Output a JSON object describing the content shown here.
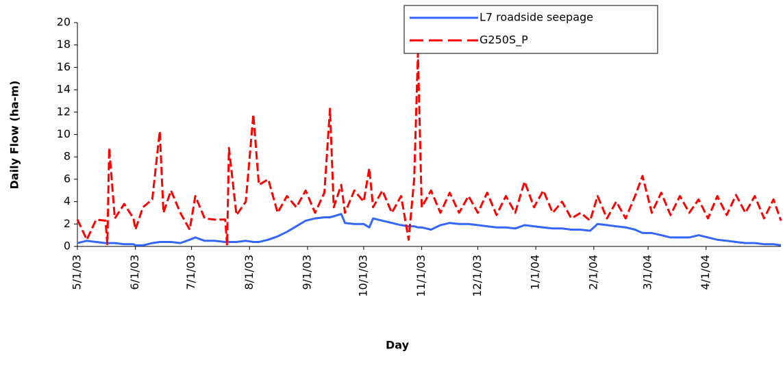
{
  "chart_data": {
    "type": "line",
    "xlabel": "Day",
    "ylabel": "Daily Flow (ha-m)",
    "x": [
      "5/1/03",
      "5/6/03",
      "5/11/03",
      "5/16/03",
      "5/17/03",
      "5/18/03",
      "5/21/03",
      "5/26/03",
      "5/31/03",
      "6/1/03",
      "6/5/03",
      "6/10/03",
      "6/14/03",
      "6/16/03",
      "6/20/03",
      "6/25/03",
      "6/30/03",
      "7/3/03",
      "7/8/03",
      "7/13/03",
      "7/19/03",
      "7/20/03",
      "7/21/03",
      "7/25/03",
      "7/30/03",
      "8/3/03",
      "8/6/03",
      "8/11/03",
      "8/16/03",
      "8/21/03",
      "8/26/03",
      "8/31/03",
      "9/5/03",
      "9/10/03",
      "9/13/03",
      "9/15/03",
      "9/19/03",
      "9/21/03",
      "9/26/03",
      "10/1/03",
      "10/4/03",
      "10/6/03",
      "10/11/03",
      "10/16/03",
      "10/21/03",
      "10/25/03",
      "10/28/03",
      "10/30/03",
      "11/1/03",
      "11/6/03",
      "11/11/03",
      "11/16/03",
      "11/21/03",
      "11/26/03",
      "12/1/03",
      "12/6/03",
      "12/11/03",
      "12/16/03",
      "12/21/03",
      "12/26/03",
      "12/31/03",
      "1/5/04",
      "1/10/04",
      "1/15/04",
      "1/20/04",
      "1/25/04",
      "1/30/04",
      "2/3/04",
      "2/8/04",
      "2/13/04",
      "2/18/04",
      "2/23/04",
      "2/27/04",
      "3/3/04",
      "3/8/04",
      "3/13/04",
      "3/18/04",
      "3/23/04",
      "3/28/04",
      "4/2/04",
      "4/7/04",
      "4/12/04",
      "4/17/04",
      "4/22/04",
      "4/27/04",
      "5/2/04",
      "5/7/04",
      "5/11/04"
    ],
    "series": [
      {
        "name": "L7 roadside seepage",
        "color": "#3366ff",
        "dash": false,
        "values": [
          0.3,
          0.5,
          0.4,
          0.3,
          0.3,
          0.3,
          0.3,
          0.2,
          0.2,
          0.1,
          0.1,
          0.3,
          0.4,
          0.4,
          0.4,
          0.3,
          0.6,
          0.8,
          0.5,
          0.5,
          0.4,
          0.4,
          0.4,
          0.4,
          0.5,
          0.4,
          0.4,
          0.6,
          0.9,
          1.3,
          1.8,
          2.3,
          2.5,
          2.6,
          2.6,
          2.7,
          2.9,
          2.1,
          2.0,
          2.0,
          1.7,
          2.5,
          2.3,
          2.1,
          1.9,
          1.8,
          1.8,
          1.7,
          1.7,
          1.5,
          1.9,
          2.1,
          2.0,
          2.0,
          1.9,
          1.8,
          1.7,
          1.7,
          1.6,
          1.9,
          1.8,
          1.7,
          1.6,
          1.6,
          1.5,
          1.5,
          1.4,
          2.0,
          1.9,
          1.8,
          1.7,
          1.5,
          1.2,
          1.2,
          1.0,
          0.8,
          0.8,
          0.8,
          1.0,
          0.8,
          0.6,
          0.5,
          0.4,
          0.3,
          0.3,
          0.2,
          0.2,
          0.1
        ]
      },
      {
        "name": "G250S_P",
        "color": "#ff0000",
        "dash": true,
        "values": [
          2.4,
          0.6,
          2.4,
          2.3,
          0.2,
          8.8,
          2.5,
          3.8,
          2.5,
          1.5,
          3.5,
          4.2,
          10.3,
          3,
          5,
          3,
          1.5,
          4.5,
          2.5,
          2.4,
          2.4,
          0.1,
          8.8,
          2.8,
          4,
          11.8,
          5.5,
          6,
          3,
          4.5,
          3.5,
          5,
          3,
          4.8,
          12.3,
          3.5,
          5.5,
          3,
          5,
          4,
          7,
          3.5,
          5,
          3,
          4.5,
          0.6,
          6,
          17.3,
          3.5,
          5,
          3,
          4.8,
          3,
          4.5,
          3,
          4.8,
          2.8,
          4.5,
          3,
          5.8,
          3.5,
          5,
          3,
          4,
          2.5,
          3,
          2.3,
          4.5,
          2.5,
          4,
          2.5,
          4.5,
          6.3,
          3,
          4.8,
          2.8,
          4.5,
          3,
          4.2,
          2.5,
          4.5,
          2.8,
          4.6,
          3,
          4.5,
          2.5,
          4.2,
          2.3
        ]
      }
    ],
    "xlim": [
      "5/1/03",
      "5/11/04"
    ],
    "xticks": [
      "5/1/03",
      "6/1/03",
      "7/1/03",
      "8/1/03",
      "9/1/03",
      "10/1/03",
      "11/1/03",
      "12/1/03",
      "1/1/04",
      "2/1/04",
      "3/1/04",
      "4/1/04"
    ],
    "ylim": [
      0,
      20
    ],
    "yticks": [
      0,
      2,
      4,
      6,
      8,
      10,
      12,
      14,
      16,
      18,
      20
    ],
    "legend": "top"
  }
}
